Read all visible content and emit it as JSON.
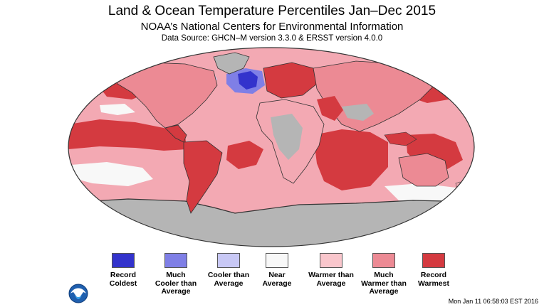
{
  "header": {
    "title": "Land & Ocean Temperature Percentiles Jan–Dec 2015",
    "subtitle": "NOAA’s National Centers for Environmental Information",
    "source": "Data Source: GHCN–M version 3.3.0 & ERSST version 4.0.0"
  },
  "legend": [
    {
      "label": "Record\nColdest",
      "color": "#3333cc"
    },
    {
      "label": "Much\nCooler than\nAverage",
      "color": "#7f7fe6"
    },
    {
      "label": "Cooler than\nAverage",
      "color": "#c8c8f5"
    },
    {
      "label": "Near\nAverage",
      "color": "#f8f8f8"
    },
    {
      "label": "Warmer than\nAverage",
      "color": "#f9c6cc"
    },
    {
      "label": "Much\nWarmer than\nAverage",
      "color": "#ec8a94"
    },
    {
      "label": "Record\nWarmest",
      "color": "#d43a40"
    }
  ],
  "map": {
    "ocean_color": "#f3a9b3",
    "no_data_color": "#b5b5b5",
    "coast_color": "#333333"
  },
  "timestamp": "Mon Jan 11 06:58:03 EST 2016"
}
